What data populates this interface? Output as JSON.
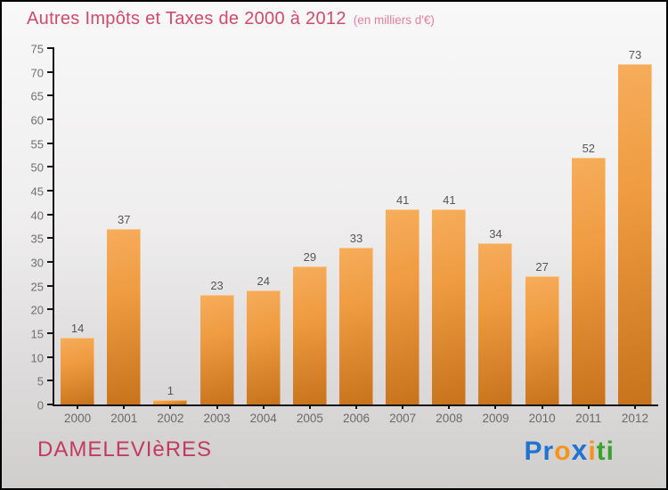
{
  "header": {
    "title": "Autres Impôts et Taxes de 2000 à 2012",
    "subtitle": "(en milliers d'€)"
  },
  "chart_data": {
    "type": "bar",
    "title": "Autres Impôts et Taxes de 2000 à 2012",
    "subtitle": "(en milliers d'€)",
    "categories": [
      "2000",
      "2001",
      "2002",
      "2003",
      "2004",
      "2005",
      "2006",
      "2007",
      "2008",
      "2009",
      "2010",
      "2011",
      "2012"
    ],
    "values": [
      14,
      37,
      1,
      23,
      24,
      29,
      33,
      41,
      41,
      34,
      27,
      52,
      73
    ],
    "xlabel": "",
    "ylabel": "",
    "ylim": [
      0,
      75
    ],
    "ytick_step": 5,
    "grid": false,
    "legend": false,
    "bar_color_top": "#f6ad5b",
    "bar_color_bottom": "#c7731d"
  },
  "footer": {
    "city": "DAMELEVIèRES",
    "logo": {
      "name": "Proxiti",
      "letters": [
        {
          "ch": "P",
          "color": "#2273d0"
        },
        {
          "ch": "r",
          "color": "#2273d0"
        },
        {
          "ch": "o",
          "color": "#f6921e"
        },
        {
          "ch": "x",
          "color": "#2273d0",
          "bold": true
        },
        {
          "ch": "i",
          "color": "#f6921e"
        },
        {
          "ch": "t",
          "color": "#38a32f"
        },
        {
          "ch": "i",
          "color": "#38a32f"
        }
      ]
    }
  },
  "colors": {
    "title": "#d14a6b",
    "subtitle": "#e87f9f",
    "city": "#c23a60",
    "axis": "#141414",
    "tick_label": "#6e6e6e",
    "value_label": "#565656",
    "background_top": "#f9f8f8",
    "background_bottom": "#d0cecd"
  }
}
